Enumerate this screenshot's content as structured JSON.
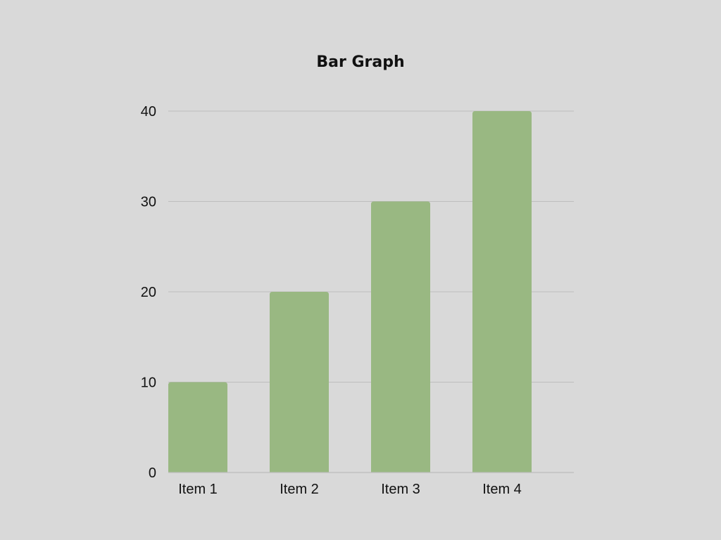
{
  "chart_data": {
    "type": "bar",
    "title": "Bar Graph",
    "xlabel": "",
    "ylabel": "",
    "categories": [
      "Item 1",
      "Item 2",
      "Item 3",
      "Item 4"
    ],
    "values": [
      10,
      20,
      30,
      40
    ],
    "ylim": [
      0,
      40
    ],
    "yticks": [
      0,
      10,
      20,
      30,
      40
    ],
    "grid": true,
    "legend": "none",
    "colors": {
      "bar": "#99b882",
      "background": "#d9d9d9",
      "gridline": "#bdbdbd",
      "text": "#111111"
    }
  }
}
